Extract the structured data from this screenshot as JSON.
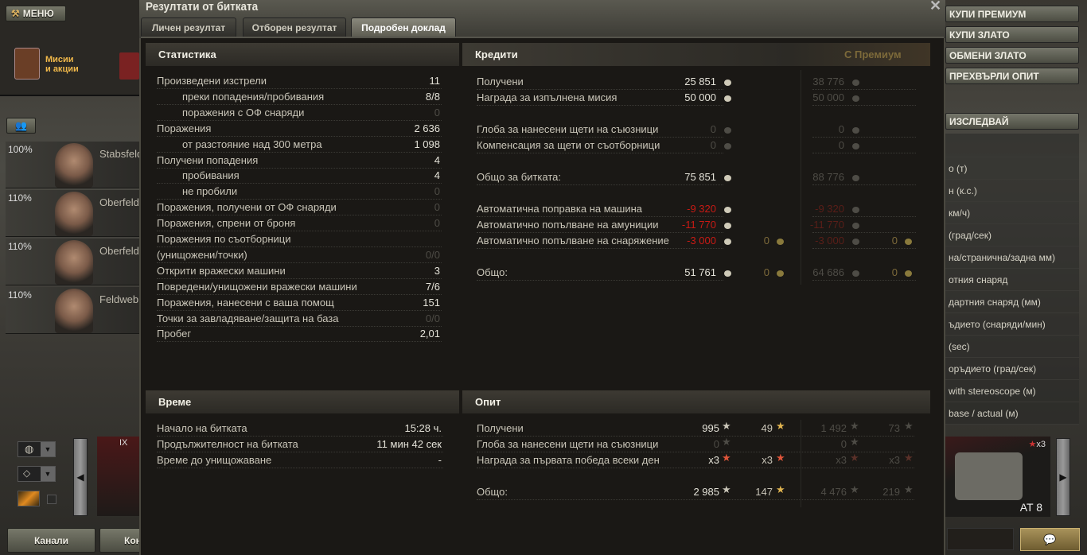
{
  "hangar": {
    "menu_label": "МЕНЮ",
    "missions_label_1": "Мисии",
    "missions_label_2": "и акции",
    "crew": [
      {
        "percent": "100%",
        "name": "Stabsfeld"
      },
      {
        "percent": "110%",
        "name": "Oberfeld"
      },
      {
        "percent": "110%",
        "name": "Oberfeld"
      },
      {
        "percent": "110%",
        "name": "Feldweb"
      }
    ],
    "channels_label": "Канали",
    "contacts_label": "Кон",
    "vehicle_tier": "IX",
    "right_buttons": [
      "КУПИ ПРЕМИУМ",
      "КУПИ ЗЛАТО",
      "ОБМЕНИ ЗЛАТО",
      "ПРЕХВЪРЛИ ОПИТ"
    ],
    "research_label": "ИЗСЛЕДВАЙ",
    "specs": [
      "о (т)",
      "н (к.с.)",
      "км/ч)",
      "(град/сек)",
      "на/странична/задна мм)",
      "отния снаряд",
      "дартния снаряд (мм)",
      "ъдието (снаряди/мин)",
      "(sec)",
      "оръдието (град/сек)",
      "with stereoscope (м)",
      "base / actual (м)"
    ],
    "tank_name": "AT 8",
    "tank_bonus": "x3"
  },
  "dialog": {
    "title": "Резултати от битката",
    "tabs": [
      {
        "label": "Личен резултат",
        "active": false
      },
      {
        "label": "Отборен резултат",
        "active": false
      },
      {
        "label": "Подробен доклад",
        "active": true
      }
    ],
    "statistics": {
      "header": "Статистика",
      "rows": [
        {
          "label": "Произведени изстрели",
          "value": "11"
        },
        {
          "label": "преки попадения/пробивания",
          "value": "8/8",
          "indent": true
        },
        {
          "label": "поражения с ОФ снаряди",
          "value": "0",
          "indent": true,
          "dim": true
        },
        {
          "label": "Поражения",
          "value": "2 636"
        },
        {
          "label": "от разстояние над 300 метра",
          "value": "1 098",
          "indent": true
        },
        {
          "label": "Получени попадения",
          "value": "4"
        },
        {
          "label": "пробивания",
          "value": "4",
          "indent": true
        },
        {
          "label": "не пробили",
          "value": "0",
          "indent": true,
          "dim": true
        },
        {
          "label": "Поражения, получени от ОФ снаряди",
          "value": "0",
          "dim": true
        },
        {
          "label": "Поражения, спрени от броня",
          "value": "0",
          "dim": true
        },
        {
          "label": "Поражения по съотборници",
          "value": ""
        },
        {
          "label": "(унищожени/точки)",
          "value": "0/0",
          "dim": true
        },
        {
          "label": "Открити вражески машини",
          "value": "3"
        },
        {
          "label": "Повредени/унищожени вражески машини",
          "value": "7/6"
        },
        {
          "label": "Поражения, нанесени с ваша помощ",
          "value": "151"
        },
        {
          "label": "Точки за завладяване/защита на база",
          "value": "0/0",
          "dim": true
        },
        {
          "label": "Пробег",
          "value": "2,01"
        }
      ]
    },
    "credits": {
      "header": "Кредити",
      "premium_header": "С Премиум",
      "groups": [
        [
          {
            "label": "Получени",
            "base": "25 851",
            "premium": "38 776"
          },
          {
            "label": "Награда за изпълнена мисия",
            "base": "50 000",
            "premium": "50 000"
          }
        ],
        [
          {
            "label": "Глоба за нанесени щети на съюзници",
            "base": "0",
            "base_tone": "dim",
            "premium": "0"
          },
          {
            "label": "Компенсация за щети от съотборници",
            "base": "0",
            "base_tone": "dim",
            "premium": "0"
          }
        ],
        [
          {
            "label": "Общо за битката:",
            "base": "75 851",
            "premium": "88 776"
          }
        ],
        [
          {
            "label": "Автоматична поправка на машина",
            "base": "-9 320",
            "base_tone": "neg",
            "premium": "-9 320",
            "premium_tone": "negdim"
          },
          {
            "label": "Автоматично попълване на амуниции",
            "base": "-11 770",
            "base_tone": "neg",
            "premium": "-11 770",
            "premium_tone": "negdim"
          },
          {
            "label": "Автоматично попълване на снаряжение",
            "base": "-3 000",
            "base_tone": "neg",
            "gold": "0",
            "premium": "-3 000",
            "premium_tone": "negdim",
            "premium_gold": "0"
          }
        ],
        [
          {
            "label": "Общо:",
            "base": "51 761",
            "gold": "0",
            "premium": "64 686",
            "premium_gold": "0"
          }
        ]
      ]
    },
    "time": {
      "header": "Време",
      "rows": [
        {
          "label": "Начало на битката",
          "value": "15:28 ч."
        },
        {
          "label": "Продължителност на битката",
          "value": "11 мин 42 сек"
        },
        {
          "label": "Време до унищожаване",
          "value": "-"
        }
      ]
    },
    "experience": {
      "header": "Опит",
      "groups": [
        [
          {
            "label": "Получени",
            "xp": "995",
            "free": "49",
            "premium_xp": "1 492",
            "premium_free": "73"
          },
          {
            "label": "Глоба за нанесени щети на съюзници",
            "xp": "0",
            "xp_tone": "dim",
            "premium_xp": "0"
          },
          {
            "label": "Награда за първата победа всеки ден",
            "xp": "x3",
            "free": "x3",
            "premium_xp": "x3",
            "premium_free": "x3",
            "bonus": true
          }
        ],
        [
          {
            "label": "Общо:",
            "xp": "2 985",
            "free": "147",
            "premium_xp": "4 476",
            "premium_free": "219"
          }
        ]
      ]
    }
  },
  "colors": {
    "negative": "#c81a14",
    "premium_header": "#7d6a3a",
    "background": "#1a1815"
  }
}
